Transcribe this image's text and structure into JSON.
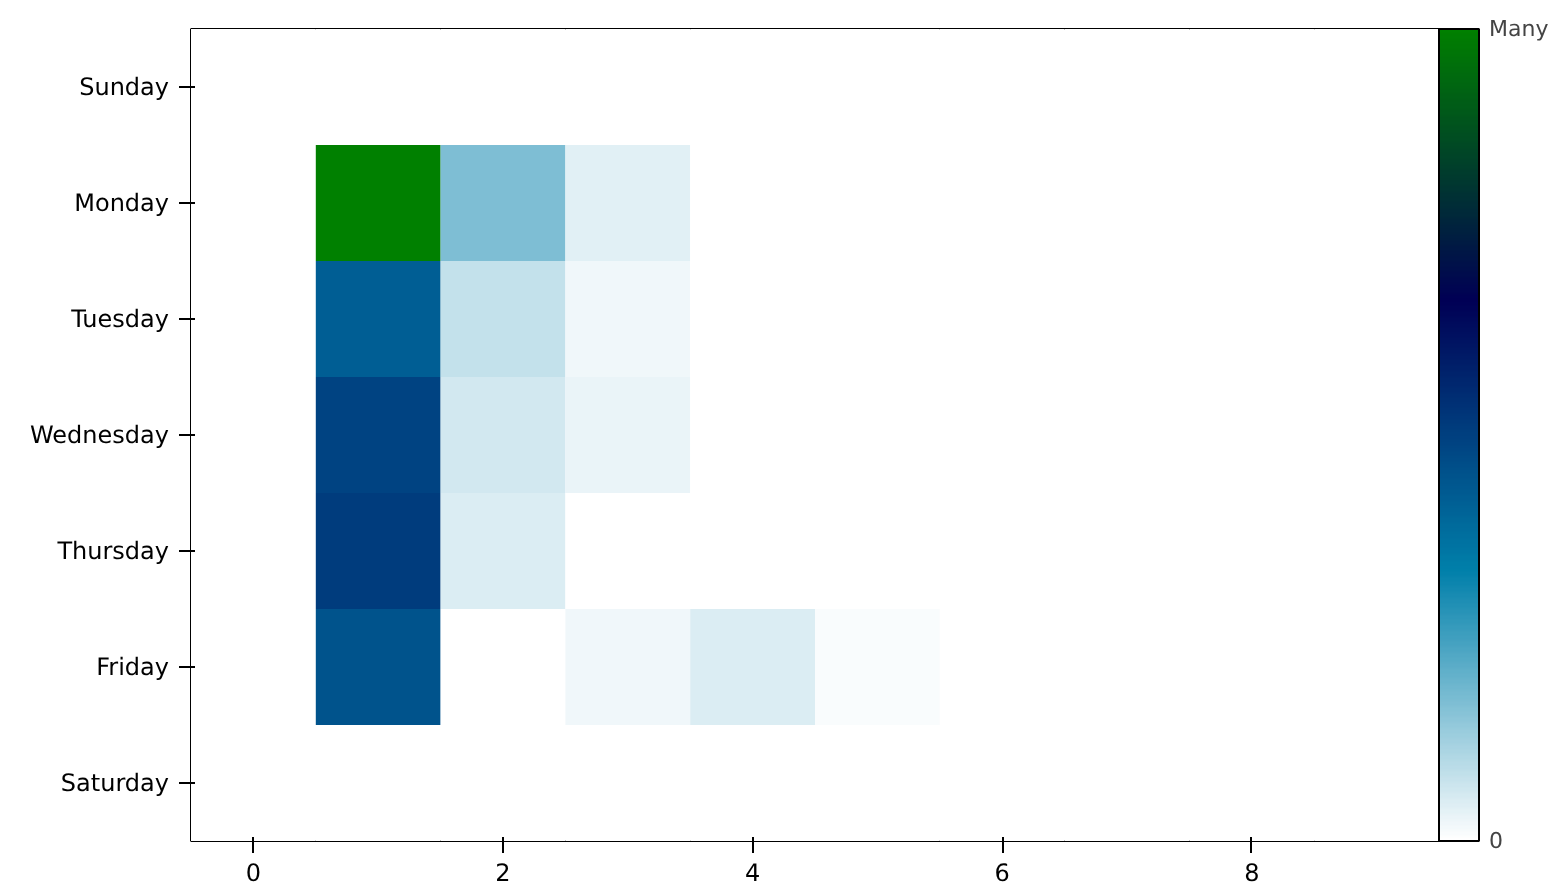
{
  "chart_data": {
    "type": "heatmap",
    "x": [
      0,
      1,
      2,
      3,
      4,
      5,
      6,
      7,
      8,
      9
    ],
    "xlim": [
      -0.5,
      9.5
    ],
    "xticks": [
      0,
      2,
      4,
      6,
      8
    ],
    "y_categories": [
      "Sunday",
      "Monday",
      "Tuesday",
      "Wednesday",
      "Thursday",
      "Friday",
      "Saturday"
    ],
    "cells": [
      [
        0,
        0,
        0,
        0,
        0,
        0,
        0,
        0,
        0,
        0
      ],
      [
        0,
        1,
        0.17,
        0.04,
        0,
        0,
        0,
        0,
        0,
        0
      ],
      [
        0,
        0.42,
        0.08,
        0.02,
        0,
        0,
        0,
        0,
        0,
        0
      ],
      [
        0,
        0.49,
        0.06,
        0.03,
        0,
        0,
        0,
        0,
        0,
        0
      ],
      [
        0,
        0.51,
        0.05,
        0,
        0,
        0,
        0,
        0,
        0,
        0
      ],
      [
        0,
        0.45,
        0,
        0.02,
        0.05,
        0.01,
        0,
        0,
        0,
        0
      ],
      [
        0,
        0,
        0,
        0,
        0,
        0,
        0,
        0,
        0,
        0
      ]
    ],
    "clim": [
      0,
      1
    ],
    "cticks": [
      {
        "value": 0,
        "label": "0"
      },
      {
        "value": 1,
        "label": "Many"
      }
    ],
    "grid": false
  }
}
